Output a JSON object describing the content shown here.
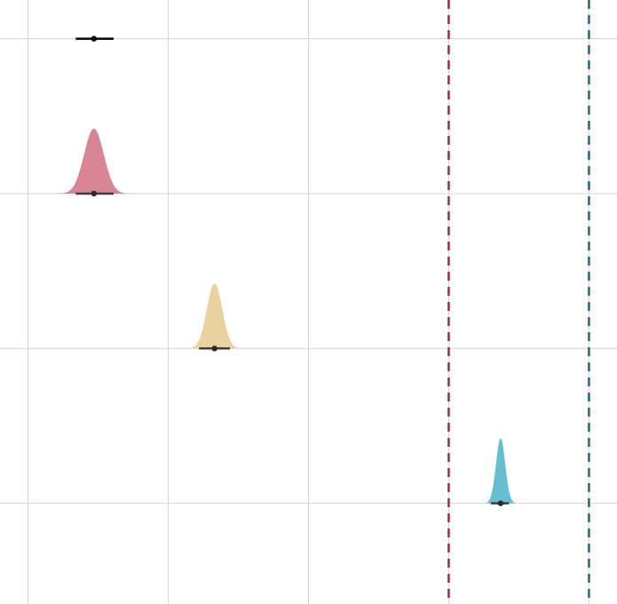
{
  "chart_data": {
    "type": "density",
    "title": "",
    "xlabel": "",
    "ylabel": "",
    "grid": true,
    "legend": "none",
    "xlim": [
      -0.2,
      4.2
    ],
    "ylim": [
      -0.65,
      3.25
    ],
    "x_gridlines": [
      0,
      1,
      2,
      3,
      4
    ],
    "y_gridlines": [
      0,
      1,
      2,
      3
    ],
    "reference_lines": [
      {
        "x": 3,
        "color": "#9e2a4a",
        "style": "dashed"
      },
      {
        "x": 4,
        "color": "#1f6b74",
        "style": "dashed"
      }
    ],
    "series": [
      {
        "row": 3,
        "mean": 0.47,
        "sd": 0,
        "interval": [
          0.34,
          0.61
        ],
        "color": "#000000",
        "line_color": "#000000"
      },
      {
        "row": 2,
        "mean": 0.47,
        "sd": 0.07,
        "interval": [
          0.34,
          0.61
        ],
        "color": "#d88594",
        "line_color": "#3d3d3d"
      },
      {
        "row": 1,
        "mean": 1.33,
        "sd": 0.055,
        "interval": [
          1.22,
          1.44
        ],
        "color": "#ebd1a0",
        "line_color": "#3d3d3d"
      },
      {
        "row": 0,
        "mean": 3.37,
        "sd": 0.033,
        "interval": [
          3.3,
          3.43
        ],
        "color": "#66bfd1",
        "line_color": "#3d3d3d"
      }
    ]
  }
}
